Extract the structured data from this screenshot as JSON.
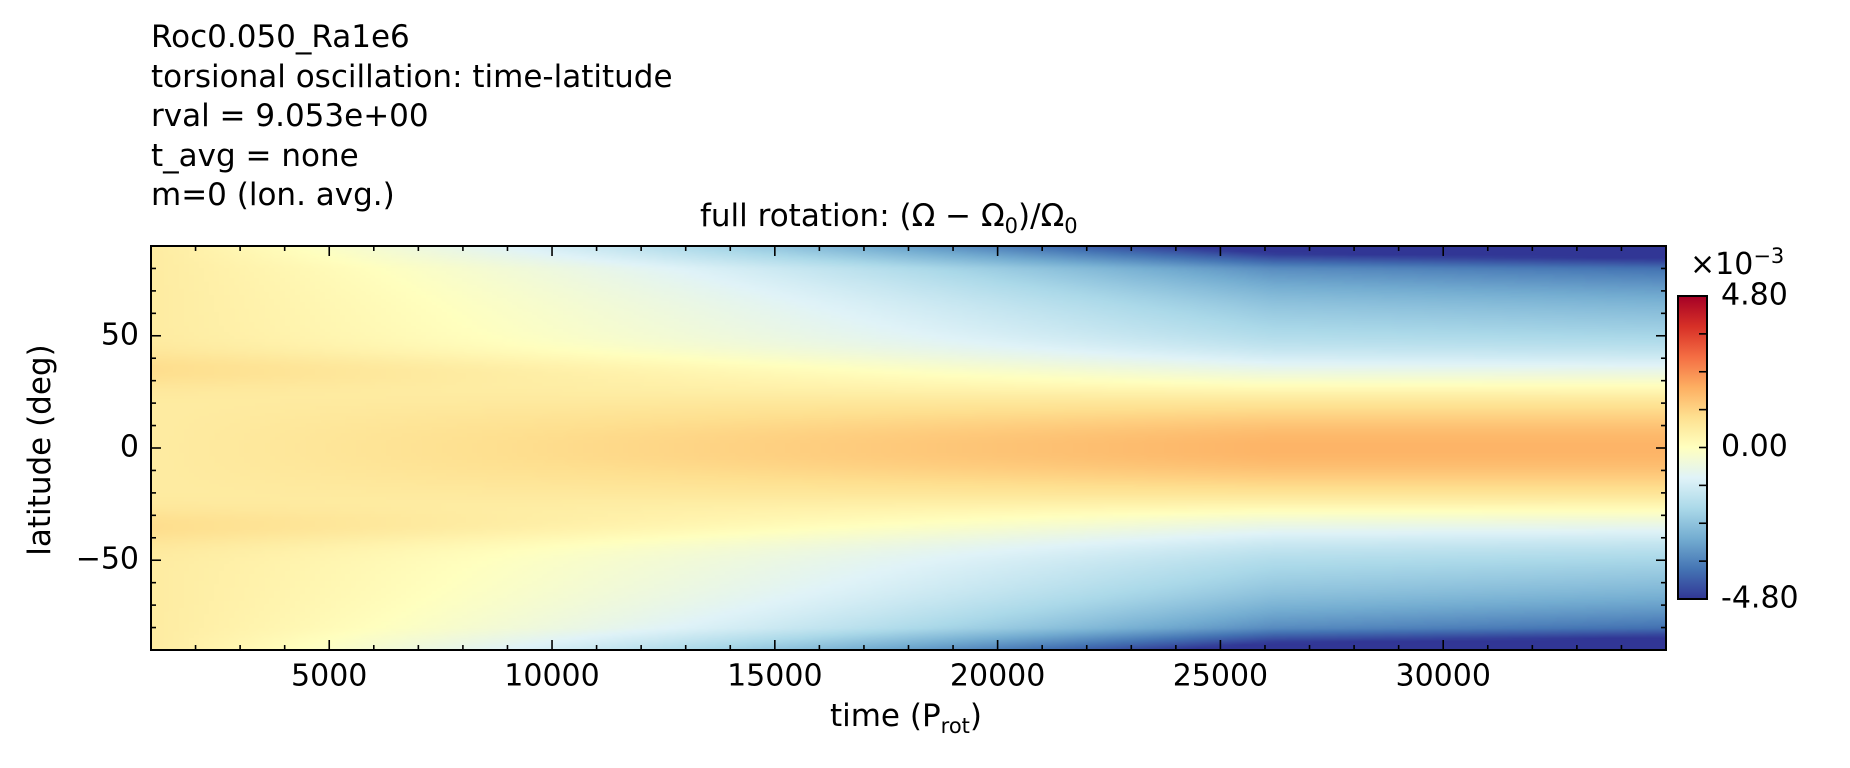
{
  "header": {
    "lines": [
      "Roc0.050_Ra1e6",
      "torsional oscillation: time-latitude",
      "rval = 9.053e+00",
      "t_avg = none",
      "m=0 (lon. avg.)"
    ]
  },
  "chart_data": {
    "type": "heatmap",
    "title_prefix": "full rotation: ",
    "title_math": "(Ω − Ω",
    "title_math_sub": "0",
    "title_math_mid": ")/Ω",
    "title_math_sub2": "0",
    "xlabel": "time (P",
    "xlabel_sub": "rot",
    "xlabel_end": ")",
    "ylabel": "latitude (deg)",
    "xlim": [
      1000,
      35000
    ],
    "ylim": [
      -90,
      90
    ],
    "x_ticks": [
      5000,
      10000,
      15000,
      20000,
      25000,
      30000
    ],
    "x_tick_labels": [
      "5000",
      "10000",
      "15000",
      "20000",
      "25000",
      "30000"
    ],
    "y_ticks": [
      50,
      0,
      -50
    ],
    "y_tick_labels": [
      "50",
      "0",
      "−50"
    ],
    "colorbar": {
      "colormap": "RdYlBu_r",
      "min": -4.8,
      "max": 4.8,
      "exponent_prefix": "×10",
      "exponent": "−3",
      "tick_labels": [
        "4.80",
        "0.00",
        "-4.80"
      ],
      "tick_values": [
        4.8,
        0.0,
        -4.8
      ],
      "colors": [
        "#313695",
        "#4575b4",
        "#74add1",
        "#abd9e9",
        "#e0f3f8",
        "#ffffbf",
        "#fee090",
        "#fdae61",
        "#f46d43",
        "#d73027",
        "#a50026"
      ]
    },
    "field_description_values": {
      "equator_late": 1.8,
      "pole_late": -4.8,
      "early_time_all": 0.6
    }
  }
}
